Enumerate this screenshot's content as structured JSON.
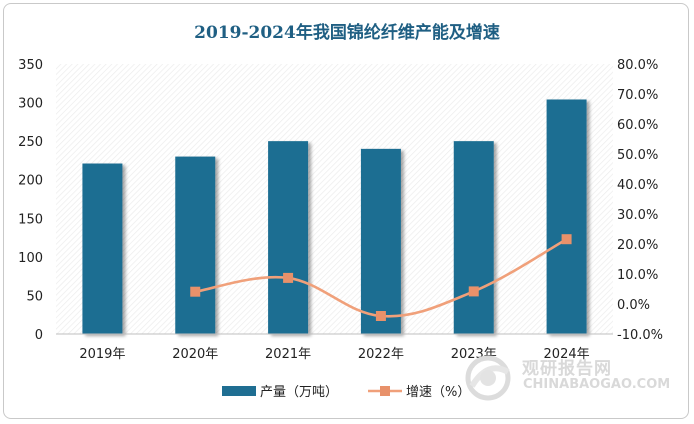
{
  "chart_data": {
    "type": "bar",
    "title": "2019-2024年我国锦纶纤维产能及增速",
    "categories": [
      "2019年",
      "2020年",
      "2021年",
      "2022年",
      "2023年",
      "2024年"
    ],
    "series": [
      {
        "name": "产量（万吨）",
        "type": "bar",
        "axis": "left",
        "color": "#1f6e92",
        "values": [
          221,
          230,
          250,
          240,
          250,
          304
        ]
      },
      {
        "name": "增速（%）",
        "type": "line",
        "axis": "right",
        "color": "#f0a07a",
        "smooth": true,
        "values": [
          null,
          4.1,
          8.7,
          -4.0,
          4.2,
          21.6
        ]
      }
    ],
    "y_left": {
      "ylim": [
        0,
        350
      ],
      "ticks": [
        "0",
        "50",
        "100",
        "150",
        "200",
        "250",
        "300",
        "350"
      ]
    },
    "y_right": {
      "ylim": [
        -10,
        80
      ],
      "ticks": [
        "-10.0%",
        "0.0%",
        "10.0%",
        "20.0%",
        "30.0%",
        "40.0%",
        "50.0%",
        "60.0%",
        "70.0%",
        "80.0%"
      ]
    },
    "legend_position": "bottom",
    "plot_background": "hatched"
  },
  "watermark": {
    "cn": "观研报告网",
    "en": "CHINABAOGAO.COM"
  }
}
